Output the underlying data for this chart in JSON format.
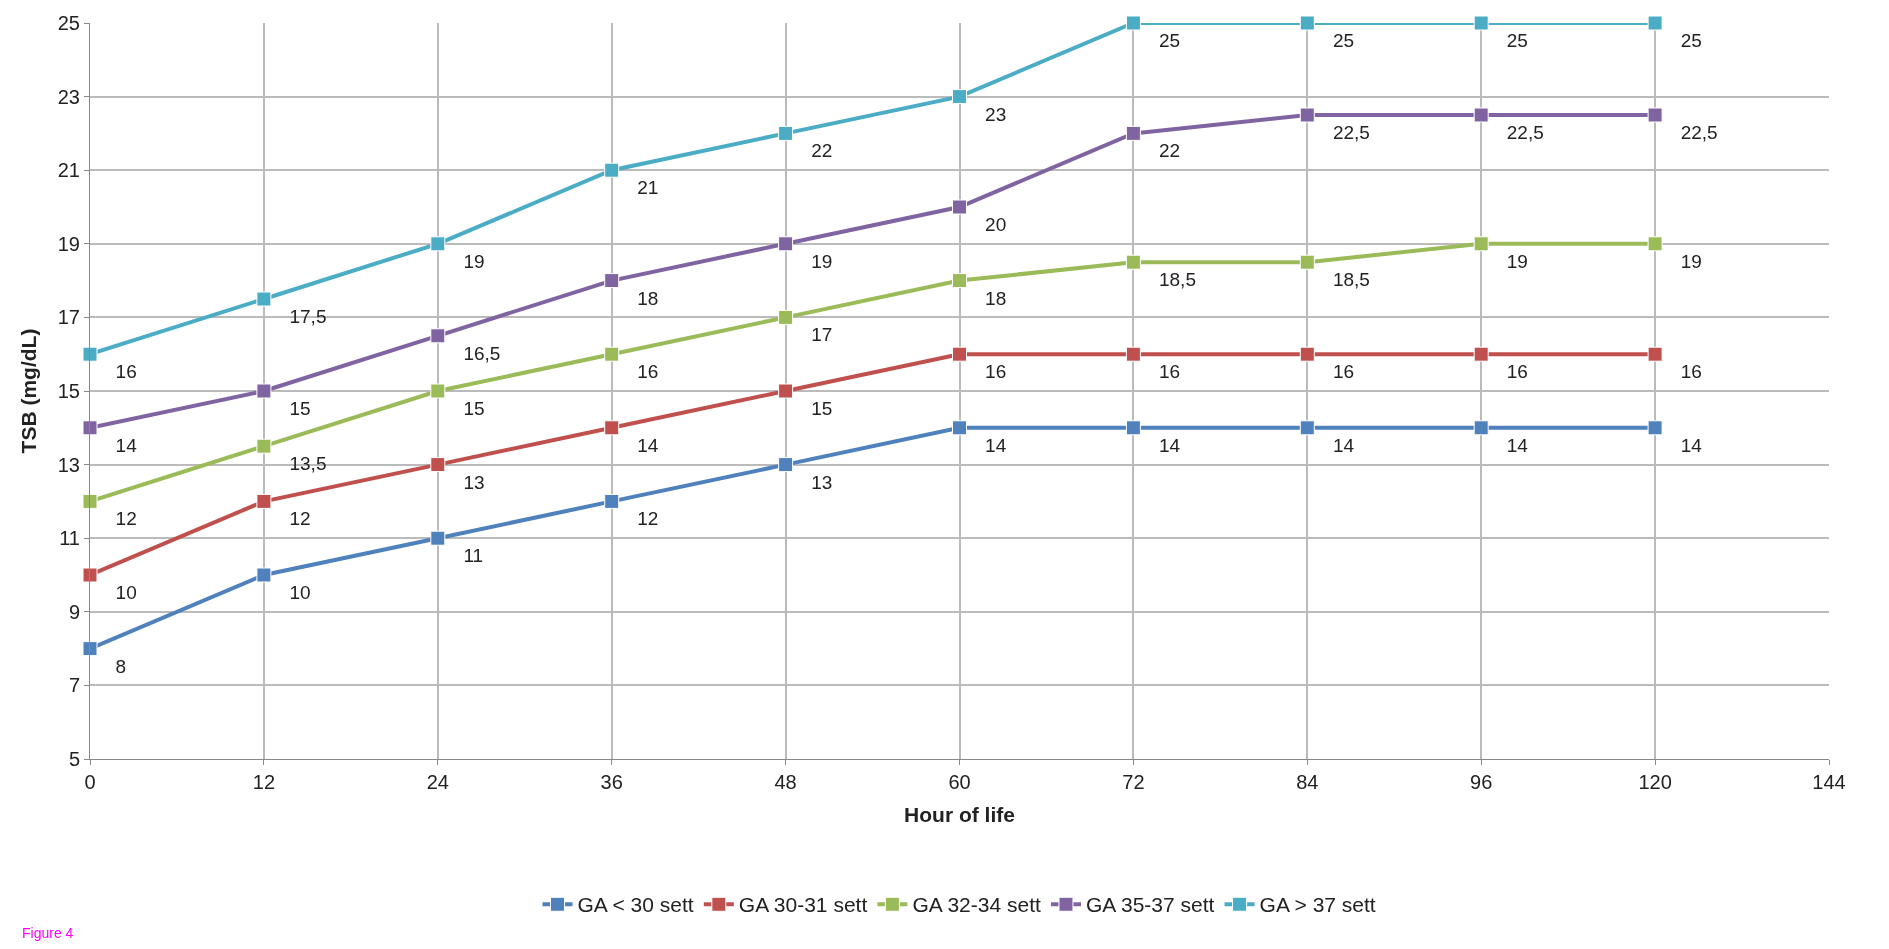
{
  "chart_data": {
    "type": "line",
    "xlabel": "Hour of life",
    "ylabel": "TSB (mg/dL)",
    "categories": [
      "0",
      "12",
      "24",
      "36",
      "48",
      "60",
      "72",
      "84",
      "96",
      "120",
      "144"
    ],
    "ylim": [
      5,
      25
    ],
    "yticks": [
      5,
      7,
      9,
      11,
      13,
      15,
      17,
      19,
      21,
      23,
      25
    ],
    "grid": true,
    "legend": "bottom",
    "marker": "square",
    "series": [
      {
        "name": "GA < 30 sett",
        "color": "#4f81bd",
        "values": [
          8,
          10,
          11,
          12,
          13,
          14,
          14,
          14,
          14,
          14,
          null
        ],
        "value_labels": [
          "8",
          "10",
          "11",
          "12",
          "13",
          "14",
          "14",
          "14",
          "14",
          "14",
          null
        ]
      },
      {
        "name": "GA 30-31 sett",
        "color": "#c0504d",
        "values": [
          10,
          12,
          13,
          14,
          15,
          16,
          16,
          16,
          16,
          16,
          null
        ],
        "value_labels": [
          "10",
          "12",
          "13",
          "14",
          "15",
          "16",
          "16",
          "16",
          "16",
          "16",
          null
        ]
      },
      {
        "name": "GA 32-34 sett",
        "color": "#9bbb59",
        "values": [
          12,
          13.5,
          15,
          16,
          17,
          18,
          18.5,
          18.5,
          19,
          19,
          null
        ],
        "value_labels": [
          "12",
          "13,5",
          "15",
          "16",
          "17",
          "18",
          "18,5",
          "18,5",
          "19",
          "19",
          null
        ]
      },
      {
        "name": "GA 35-37 sett",
        "color": "#8064a2",
        "values": [
          14,
          15,
          16.5,
          18,
          19,
          20,
          22,
          22.5,
          22.5,
          22.5,
          null
        ],
        "value_labels": [
          "14",
          "15",
          "16,5",
          "18",
          "19",
          "20",
          "22",
          "22,5",
          "22,5",
          "22,5",
          null
        ]
      },
      {
        "name": "GA > 37 sett",
        "color": "#4bacc6",
        "values": [
          16,
          17.5,
          19,
          21,
          22,
          23,
          25,
          25,
          25,
          25,
          null
        ],
        "value_labels": [
          "16",
          "17,5",
          "19",
          "21",
          "22",
          "23",
          "25",
          "25",
          "25",
          "25",
          null
        ]
      }
    ],
    "annotations": [
      "Figure 4"
    ]
  }
}
